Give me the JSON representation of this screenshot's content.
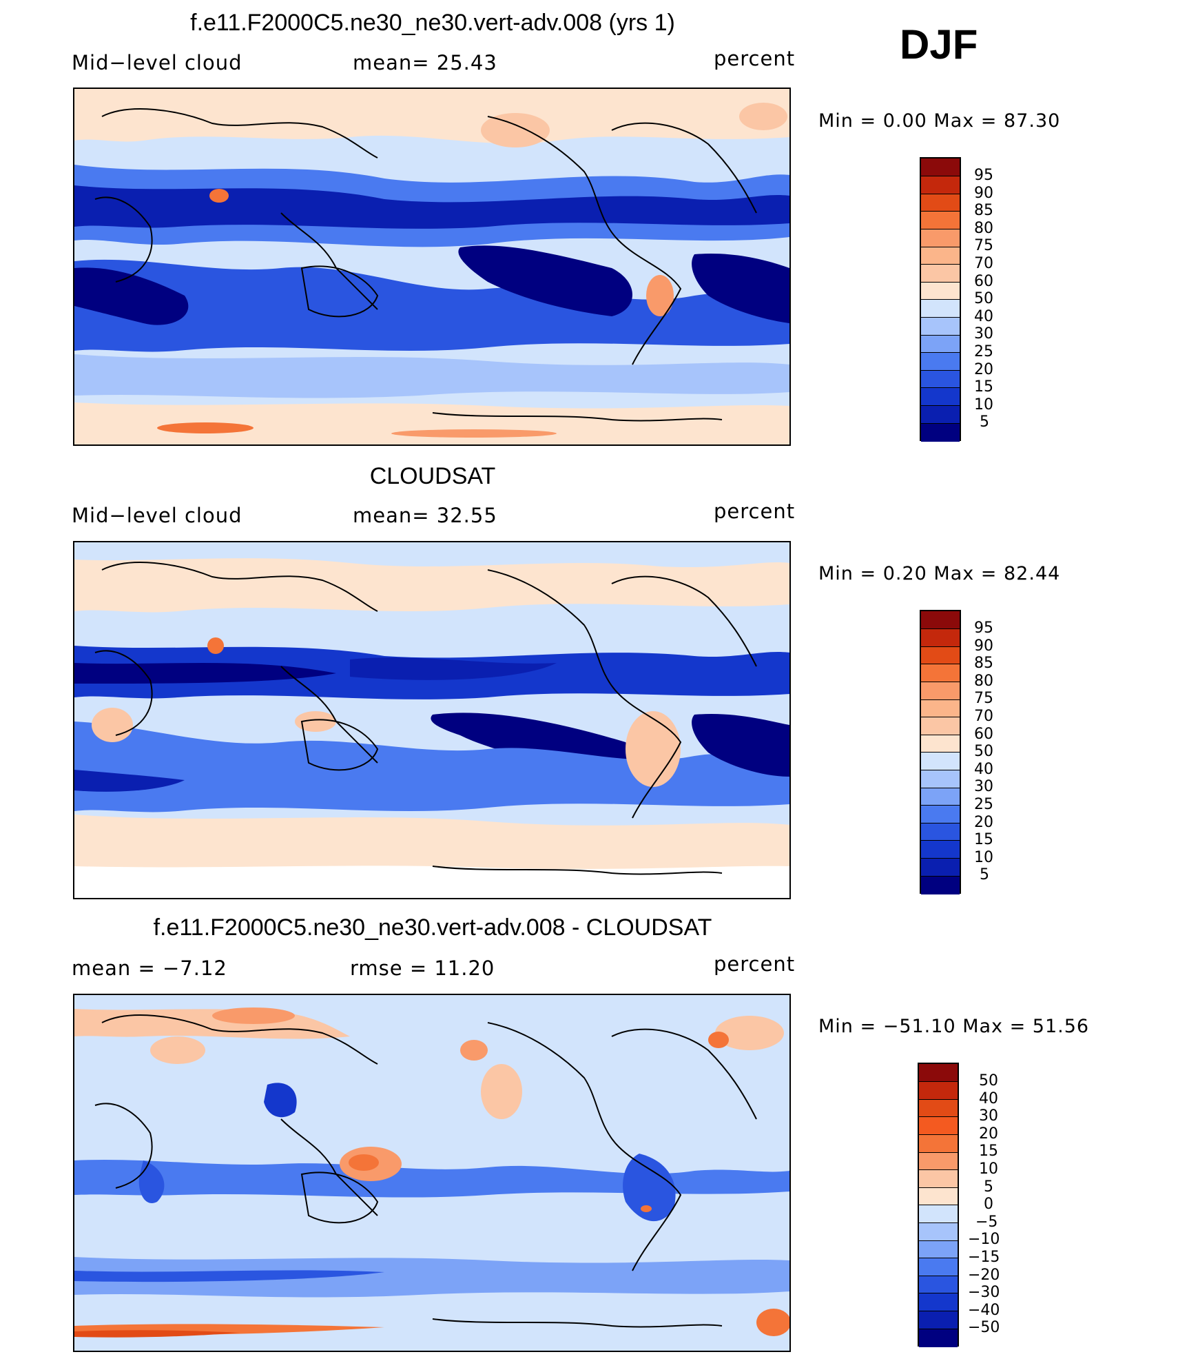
{
  "season": "DJF",
  "colors": {
    "model_obs": [
      "#000080",
      "#0a1fb0",
      "#1437cc",
      "#2a55e0",
      "#4a7af0",
      "#7ca3f7",
      "#a7c4fb",
      "#d2e4fc",
      "#fde4cf",
      "#fbc6a5",
      "#f99a6a",
      "#f47438",
      "#e24b16",
      "#c4280c",
      "#8b0a0a"
    ],
    "diff": [
      "#000080",
      "#0a1fb0",
      "#1437cc",
      "#2a55e0",
      "#4a7af0",
      "#7ca3f7",
      "#a7c4fb",
      "#d2e4fc",
      "#fde4cf",
      "#fbc6a5",
      "#f99a6a",
      "#f47438",
      "#e24b16",
      "#c4280c",
      "#8b0a0a"
    ]
  },
  "panels": [
    {
      "title": "f.e11.F2000C5.ne30_ne30.vert-adv.008 (yrs 1)",
      "left_label": "Mid−level cloud",
      "center_label": "mean=   25.43",
      "right_label": "percent",
      "minmax": "Min  =     0.00  Max  =    87.30",
      "colorbar_ticks": [
        "95",
        "90",
        "85",
        "80",
        "75",
        "70",
        "60",
        "50",
        "40",
        "30",
        "25",
        "20",
        "15",
        "10",
        "5"
      ]
    },
    {
      "title": "CLOUDSAT",
      "left_label": "Mid−level cloud",
      "center_label": "mean=   32.55",
      "right_label": "percent",
      "minmax": "Min  =     0.20  Max  =    82.44",
      "colorbar_ticks": [
        "95",
        "90",
        "85",
        "80",
        "75",
        "70",
        "60",
        "50",
        "40",
        "30",
        "25",
        "20",
        "15",
        "10",
        "5"
      ]
    },
    {
      "title": "f.e11.F2000C5.ne30_ne30.vert-adv.008 - CLOUDSAT",
      "left_label": "mean  =    −7.12",
      "center_label": "rmse  =    11.20",
      "right_label": "percent",
      "minmax": "Min  =  −51.10  Max  =    51.56",
      "colorbar_ticks": [
        "50",
        "40",
        "30",
        "20",
        "15",
        "10",
        "5",
        "0",
        "−5",
        "−10",
        "−15",
        "−20",
        "−30",
        "−40",
        "−50"
      ]
    }
  ]
}
